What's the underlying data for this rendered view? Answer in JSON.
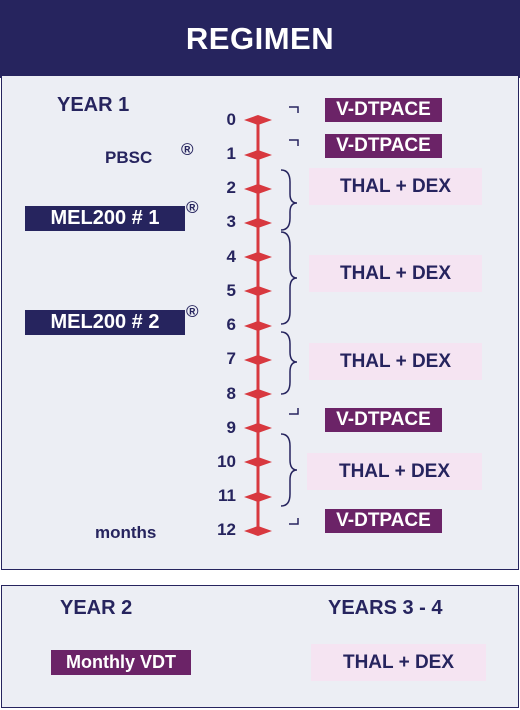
{
  "title": "REGIMEN",
  "year1_label": "YEAR 1",
  "pbsc_label": "PBSC",
  "reg_mark": "®",
  "mel200_1": "MEL200 # 1",
  "mel200_2": "MEL200 # 2",
  "months_label": "months",
  "ticks": [
    "0",
    "1",
    "2",
    "3",
    "4",
    "5",
    "6",
    "7",
    "8",
    "9",
    "10",
    "11",
    "12"
  ],
  "treatments": {
    "vdtpace_1": "V-DTPACE",
    "vdtpace_2": "V-DTPACE",
    "thal_dex_1": "THAL + DEX",
    "thal_dex_2": "THAL + DEX",
    "thal_dex_3": "THAL + DEX",
    "vdtpace_3": "V-DTPACE",
    "thal_dex_4": "THAL + DEX",
    "vdtpace_4": "V-DTPACE"
  },
  "year2_label": "YEAR 2",
  "years34_label": "YEARS 3 - 4",
  "monthly_vdt": "Monthly VDT",
  "thal_dex_y34": "THAL + DEX",
  "colors": {
    "navy": "#26245e",
    "purple": "#6b2367",
    "pink": "#f5e4f2",
    "red": "#d8383f",
    "panel": "#eceef4"
  }
}
